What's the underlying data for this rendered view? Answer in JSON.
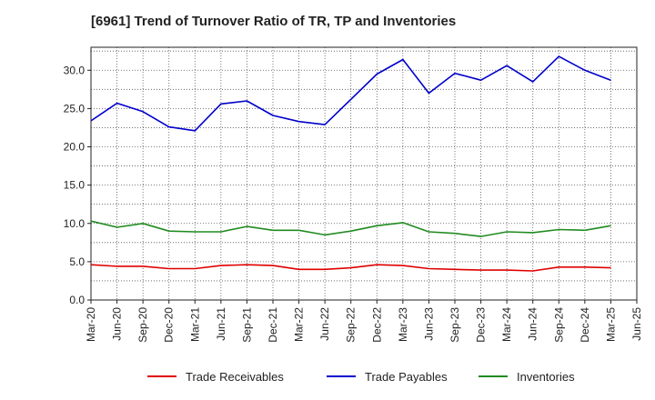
{
  "chart_data": {
    "type": "line",
    "title": "[6961]  Trend of Turnover Ratio of TR, TP and Inventories",
    "xlabel": "",
    "ylabel": "",
    "x": [
      "Mar-20",
      "Jun-20",
      "Sep-20",
      "Dec-20",
      "Mar-21",
      "Jun-21",
      "Sep-21",
      "Dec-21",
      "Mar-22",
      "Jun-22",
      "Sep-22",
      "Dec-22",
      "Mar-23",
      "Jun-23",
      "Sep-23",
      "Dec-23",
      "Mar-24",
      "Jun-24",
      "Sep-24",
      "Dec-24",
      "Mar-25"
    ],
    "x_ticks": [
      "Mar-20",
      "Jun-20",
      "Sep-20",
      "Dec-20",
      "Mar-21",
      "Jun-21",
      "Sep-21",
      "Dec-21",
      "Mar-22",
      "Jun-22",
      "Sep-22",
      "Dec-22",
      "Mar-23",
      "Jun-23",
      "Sep-23",
      "Dec-23",
      "Mar-24",
      "Jun-24",
      "Sep-24",
      "Dec-24",
      "Mar-25",
      "Jun-25"
    ],
    "y_ticks": [
      "0.0",
      "5.0",
      "10.0",
      "15.0",
      "20.0",
      "25.0",
      "30.0"
    ],
    "ylim": [
      0,
      33
    ],
    "grid": true,
    "legend_position": "bottom",
    "series": [
      {
        "name": "Trade Receivables",
        "color": "#e00000",
        "values": [
          4.6,
          4.4,
          4.4,
          4.1,
          4.1,
          4.5,
          4.6,
          4.5,
          4.0,
          4.0,
          4.2,
          4.6,
          4.5,
          4.1,
          4.0,
          3.9,
          3.9,
          3.8,
          4.3,
          4.3,
          4.2
        ]
      },
      {
        "name": "Trade Payables",
        "color": "#0000cc",
        "values": [
          23.4,
          25.7,
          24.6,
          22.6,
          22.1,
          25.6,
          26.0,
          24.1,
          23.3,
          22.9,
          26.2,
          29.5,
          31.4,
          27.0,
          29.6,
          28.7,
          30.6,
          28.5,
          31.8,
          30.0,
          28.7
        ]
      },
      {
        "name": "Inventories",
        "color": "#218b21",
        "values": [
          10.3,
          9.5,
          10.0,
          9.0,
          8.9,
          8.9,
          9.6,
          9.1,
          9.1,
          8.5,
          9.0,
          9.7,
          10.1,
          8.9,
          8.7,
          8.3,
          8.9,
          8.8,
          9.2,
          9.1,
          9.7
        ]
      }
    ]
  }
}
